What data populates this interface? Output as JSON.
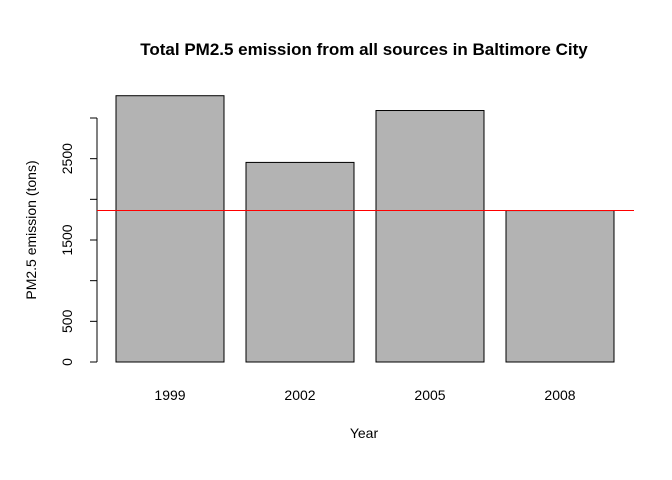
{
  "chart_data": {
    "type": "bar",
    "title": "Total PM2.5 emission from all sources in Baltimore City",
    "xlabel": "Year",
    "ylabel": "PM2.5 emission (tons)",
    "categories": [
      "1999",
      "2002",
      "2005",
      "2008"
    ],
    "values": [
      3274,
      2454,
      3092,
      1862
    ],
    "ylim": [
      0,
      3274
    ],
    "yticks": [
      0,
      500,
      1000,
      1500,
      2000,
      2500,
      3000
    ],
    "ytick_labels": [
      "0",
      "500",
      "",
      "1500",
      "",
      "2500",
      ""
    ],
    "reference_line": {
      "value": 1862,
      "color": "#ff0000"
    },
    "bar_color": "#b3b3b3",
    "grid": false,
    "legend": "none"
  }
}
